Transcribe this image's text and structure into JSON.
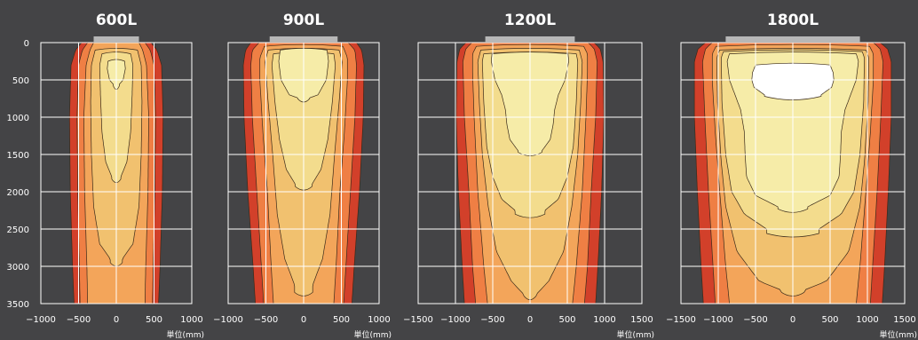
{
  "chart_data": [
    {
      "type": "heatmap",
      "title": "600L",
      "unit_label": "単位(mm)",
      "xlim": [
        -1000,
        1000
      ],
      "ylim": [
        0,
        3500
      ],
      "x_ticks": [
        -1000,
        -500,
        0,
        500,
        1000
      ],
      "x_tick_labels": [
        "−1000",
        "−500",
        "0",
        "500",
        "1000"
      ],
      "y_ticks": [
        0,
        500,
        1000,
        1500,
        2000,
        2500,
        3000,
        3500
      ],
      "y_tick_labels": [
        "0",
        "500",
        "1000",
        "1500",
        "2000",
        "2500",
        "3000",
        "3500"
      ],
      "fixture_width": [
        -300,
        300
      ],
      "contours": [
        {
          "level": 1,
          "color": "#d2402a",
          "half_width": [
            [
              0,
              460
            ],
            [
              100,
              540
            ],
            [
              300,
              600
            ],
            [
              1000,
              620
            ],
            [
              2000,
              610
            ],
            [
              3000,
              580
            ],
            [
              3500,
              560
            ]
          ],
          "max_depth": 3500
        },
        {
          "level": 2,
          "color": "#ef7f44",
          "half_width": [
            [
              0,
              380
            ],
            [
              100,
              450
            ],
            [
              300,
              500
            ],
            [
              1000,
              520
            ],
            [
              2000,
              510
            ],
            [
              3000,
              490
            ],
            [
              3500,
              480
            ]
          ],
          "max_depth": 3500
        },
        {
          "level": 3,
          "color": "#f3a55a",
          "half_width": [
            [
              0,
              300
            ],
            [
              100,
              350
            ],
            [
              300,
              400
            ],
            [
              1000,
              430
            ],
            [
              2000,
              420
            ],
            [
              3000,
              390
            ],
            [
              3500,
              380
            ]
          ],
          "max_depth": 3500
        },
        {
          "level": 4,
          "color": "#f1c16f",
          "half_width": [
            [
              100,
              280
            ],
            [
              300,
              330
            ],
            [
              800,
              340
            ],
            [
              1500,
              330
            ],
            [
              2200,
              300
            ],
            [
              2700,
              220
            ],
            [
              2900,
              80
            ]
          ],
          "max_depth": 2950
        },
        {
          "level": 5,
          "color": "#f3dc8d",
          "half_width": [
            [
              150,
              190
            ],
            [
              300,
              220
            ],
            [
              700,
              210
            ],
            [
              1200,
              190
            ],
            [
              1600,
              140
            ],
            [
              1800,
              60
            ]
          ],
          "max_depth": 1830
        },
        {
          "level": 6,
          "color": "#f6eca8",
          "half_width": [
            [
              250,
              110
            ],
            [
              350,
              120
            ],
            [
              500,
              90
            ],
            [
              560,
              40
            ]
          ],
          "max_depth": 580
        }
      ]
    },
    {
      "type": "heatmap",
      "title": "900L",
      "unit_label": "単位(mm)",
      "xlim": [
        -1000,
        1000
      ],
      "ylim": [
        0,
        3500
      ],
      "x_ticks": [
        -1000,
        -500,
        0,
        500,
        1000
      ],
      "x_tick_labels": [
        "−1000",
        "−500",
        "0",
        "500",
        "1000"
      ],
      "y_ticks": [
        0,
        500,
        1000,
        1500,
        2000,
        2500,
        3000,
        3500
      ],
      "y_tick_labels": [
        "0",
        "500",
        "1000",
        "1500",
        "2000",
        "2500",
        "3000",
        "3500"
      ],
      "fixture_width": [
        -450,
        450
      ],
      "contours": [
        {
          "level": 1,
          "color": "#d2402a",
          "half_width": [
            [
              0,
              700
            ],
            [
              100,
              770
            ],
            [
              300,
              800
            ],
            [
              1000,
              790
            ],
            [
              2000,
              740
            ],
            [
              3000,
              670
            ],
            [
              3500,
              640
            ]
          ],
          "max_depth": 3500
        },
        {
          "level": 2,
          "color": "#ef7f44",
          "half_width": [
            [
              0,
              590
            ],
            [
              100,
              680
            ],
            [
              300,
              700
            ],
            [
              1000,
              680
            ],
            [
              2000,
              620
            ],
            [
              3000,
              560
            ],
            [
              3500,
              530
            ]
          ],
          "max_depth": 3500
        },
        {
          "level": 3,
          "color": "#f3a55a",
          "half_width": [
            [
              50,
              520
            ],
            [
              200,
              580
            ],
            [
              500,
              580
            ],
            [
              1200,
              540
            ],
            [
              2000,
              480
            ],
            [
              3000,
              430
            ],
            [
              3500,
              400
            ]
          ],
          "max_depth": 3500
        },
        {
          "level": 4,
          "color": "#f1c16f",
          "half_width": [
            [
              100,
              470
            ],
            [
              250,
              510
            ],
            [
              800,
              470
            ],
            [
              1500,
              410
            ],
            [
              2300,
              350
            ],
            [
              2900,
              250
            ],
            [
              3250,
              120
            ]
          ],
          "max_depth": 3350
        },
        {
          "level": 5,
          "color": "#f3dc8d",
          "half_width": [
            [
              150,
              400
            ],
            [
              300,
              420
            ],
            [
              800,
              380
            ],
            [
              1300,
              320
            ],
            [
              1700,
              230
            ],
            [
              1900,
              110
            ]
          ],
          "max_depth": 1930
        },
        {
          "level": 6,
          "color": "#f6eca8",
          "half_width": [
            [
              100,
              310
            ],
            [
              250,
              330
            ],
            [
              500,
              300
            ],
            [
              700,
              190
            ],
            [
              740,
              80
            ]
          ],
          "max_depth": 750
        }
      ]
    },
    {
      "type": "heatmap",
      "title": "1200L",
      "unit_label": "単位(mm)",
      "xlim": [
        -1500,
        1500
      ],
      "ylim": [
        0,
        3500
      ],
      "x_ticks": [
        -1500,
        -1000,
        -500,
        0,
        500,
        1000,
        1500
      ],
      "x_tick_labels": [
        "−1500",
        "−1000",
        "−500",
        "0",
        "500",
        "1000",
        "1500"
      ],
      "y_ticks": [
        0,
        500,
        1000,
        1500,
        2000,
        2500,
        3000,
        3500
      ],
      "y_tick_labels": [
        "0",
        "500",
        "1000",
        "1500",
        "2000",
        "2500",
        "3000",
        "3500"
      ],
      "fixture_width": [
        -600,
        600
      ],
      "contours": [
        {
          "level": 1,
          "color": "#d2402a",
          "half_width": [
            [
              0,
              860
            ],
            [
              80,
              940
            ],
            [
              250,
              980
            ],
            [
              1000,
              990
            ],
            [
              2000,
              960
            ],
            [
              3000,
              910
            ],
            [
              3500,
              880
            ]
          ],
          "max_depth": 3500
        },
        {
          "level": 2,
          "color": "#ef7f44",
          "half_width": [
            [
              0,
              780
            ],
            [
              80,
              860
            ],
            [
              250,
              900
            ],
            [
              1000,
              880
            ],
            [
              2000,
              820
            ],
            [
              3000,
              770
            ],
            [
              3500,
              730
            ]
          ],
          "max_depth": 3500
        },
        {
          "level": 3,
          "color": "#f3a55a",
          "half_width": [
            [
              50,
              720
            ],
            [
              150,
              770
            ],
            [
              400,
              770
            ],
            [
              1000,
              750
            ],
            [
              2000,
              700
            ],
            [
              3000,
              620
            ],
            [
              3500,
              570
            ]
          ],
          "max_depth": 3500
        },
        {
          "level": 4,
          "color": "#f1c16f",
          "half_width": [
            [
              100,
              660
            ],
            [
              250,
              700
            ],
            [
              800,
              680
            ],
            [
              1500,
              640
            ],
            [
              2200,
              560
            ],
            [
              2800,
              450
            ],
            [
              3200,
              250
            ],
            [
              3380,
              80
            ]
          ],
          "max_depth": 3400
        },
        {
          "level": 5,
          "color": "#f3dc8d",
          "half_width": [
            [
              150,
              620
            ],
            [
              250,
              640
            ],
            [
              800,
              620
            ],
            [
              1400,
              580
            ],
            [
              1800,
              500
            ],
            [
              2100,
              380
            ],
            [
              2250,
              200
            ]
          ],
          "max_depth": 2300
        },
        {
          "level": 6,
          "color": "#f6eca8",
          "half_width": [
            [
              150,
              510
            ],
            [
              250,
              520
            ],
            [
              500,
              470
            ],
            [
              700,
              380
            ],
            [
              900,
              330
            ],
            [
              1100,
              310
            ],
            [
              1300,
              270
            ],
            [
              1450,
              160
            ]
          ],
          "max_depth": 1470
        }
      ]
    },
    {
      "type": "heatmap",
      "title": "1800L",
      "unit_label": "単位(mm)",
      "xlim": [
        -1500,
        1500
      ],
      "ylim": [
        0,
        3500
      ],
      "x_ticks": [
        -1500,
        -1000,
        -500,
        0,
        500,
        1000,
        1500
      ],
      "x_tick_labels": [
        "−1500",
        "−1000",
        "−500",
        "0",
        "500",
        "1000",
        "1500"
      ],
      "y_ticks": [
        0,
        500,
        1000,
        1500,
        2000,
        2500,
        3000,
        3500
      ],
      "y_tick_labels": [
        "0",
        "500",
        "1000",
        "1500",
        "2000",
        "2500",
        "3000",
        "3500"
      ],
      "fixture_width": [
        -900,
        900
      ],
      "contours": [
        {
          "level": 1,
          "color": "#d2402a",
          "half_width": [
            [
              0,
              1170
            ],
            [
              80,
              1270
            ],
            [
              250,
              1320
            ],
            [
              1000,
              1320
            ],
            [
              2000,
              1280
            ],
            [
              3000,
              1230
            ],
            [
              3500,
              1200
            ]
          ],
          "max_depth": 3500
        },
        {
          "level": 2,
          "color": "#ef7f44",
          "half_width": [
            [
              0,
              1080
            ],
            [
              80,
              1170
            ],
            [
              250,
              1210
            ],
            [
              1000,
              1180
            ],
            [
              2000,
              1130
            ],
            [
              3000,
              1070
            ],
            [
              3500,
              1040
            ]
          ],
          "max_depth": 3500
        },
        {
          "level": 3,
          "color": "#f3a55a",
          "half_width": [
            [
              50,
              1030
            ],
            [
              150,
              1080
            ],
            [
              500,
              1080
            ],
            [
              1200,
              1040
            ],
            [
              2000,
              980
            ],
            [
              3000,
              900
            ],
            [
              3500,
              850
            ]
          ],
          "max_depth": 3500
        },
        {
          "level": 4,
          "color": "#f1c16f",
          "half_width": [
            [
              100,
              980
            ],
            [
              200,
              1020
            ],
            [
              800,
              1010
            ],
            [
              1600,
              960
            ],
            [
              2200,
              900
            ],
            [
              2800,
              750
            ],
            [
              3200,
              450
            ],
            [
              3320,
              150
            ]
          ],
          "max_depth": 3350
        },
        {
          "level": 5,
          "color": "#f3dc8d",
          "half_width": [
            [
              120,
              930
            ],
            [
              200,
              960
            ],
            [
              800,
              950
            ],
            [
              1500,
              900
            ],
            [
              2000,
              820
            ],
            [
              2300,
              650
            ],
            [
              2500,
              350
            ]
          ],
          "max_depth": 2560
        },
        {
          "level": 6,
          "color": "#f6eca8",
          "half_width": [
            [
              150,
              850
            ],
            [
              250,
              880
            ],
            [
              500,
              850
            ],
            [
              900,
              700
            ],
            [
              1200,
              650
            ],
            [
              1500,
              640
            ],
            [
              1800,
              620
            ],
            [
              2050,
              500
            ],
            [
              2200,
              200
            ]
          ],
          "max_depth": 2230
        },
        {
          "level": 7,
          "color": "#ffffff",
          "half_width": [
            [
              300,
              500
            ],
            [
              400,
              540
            ],
            [
              500,
              550
            ],
            [
              600,
              520
            ],
            [
              700,
              380
            ]
          ],
          "max_depth": 720
        }
      ]
    }
  ]
}
